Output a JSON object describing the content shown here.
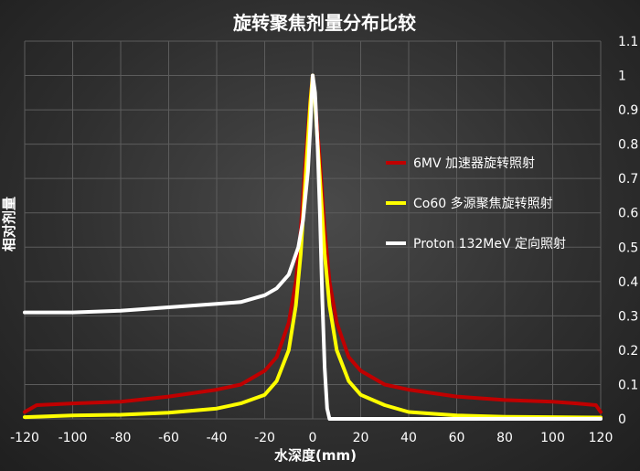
{
  "chart_data": {
    "type": "line",
    "title": "旋转聚焦剂量分布比较",
    "xlabel": "水深度(mm)",
    "ylabel": "相对剂量",
    "xlim": [
      -120,
      120
    ],
    "ylim": [
      0,
      1.1
    ],
    "xticks": [
      "-120",
      "-100",
      "-80",
      "-60",
      "-40",
      "-20",
      "0",
      "20",
      "40",
      "60",
      "80",
      "100",
      "120"
    ],
    "yticks": [
      "0",
      "0.1",
      "0.2",
      "0.3",
      "0.4",
      "0.5",
      "0.6",
      "0.7",
      "0.8",
      "0.9",
      "1",
      "1.1"
    ],
    "grid": true,
    "legend_position": "right",
    "series": [
      {
        "name": "6MV 加速器旋转照射",
        "color": "#c00000",
        "points": [
          [
            -120,
            0.02
          ],
          [
            -115,
            0.04
          ],
          [
            -100,
            0.045
          ],
          [
            -80,
            0.05
          ],
          [
            -60,
            0.065
          ],
          [
            -40,
            0.085
          ],
          [
            -30,
            0.1
          ],
          [
            -20,
            0.14
          ],
          [
            -15,
            0.18
          ],
          [
            -10,
            0.28
          ],
          [
            -7,
            0.4
          ],
          [
            -5,
            0.55
          ],
          [
            -3,
            0.75
          ],
          [
            -1,
            0.93
          ],
          [
            0,
            1.0
          ],
          [
            1,
            0.93
          ],
          [
            3,
            0.75
          ],
          [
            5,
            0.55
          ],
          [
            7,
            0.4
          ],
          [
            10,
            0.28
          ],
          [
            15,
            0.18
          ],
          [
            20,
            0.14
          ],
          [
            30,
            0.1
          ],
          [
            40,
            0.085
          ],
          [
            60,
            0.065
          ],
          [
            80,
            0.055
          ],
          [
            100,
            0.05
          ],
          [
            110,
            0.045
          ],
          [
            118,
            0.04
          ],
          [
            120,
            0.02
          ]
        ]
      },
      {
        "name": "Co60 多源聚焦旋转照射",
        "color": "#ffff00",
        "points": [
          [
            -120,
            0.005
          ],
          [
            -100,
            0.01
          ],
          [
            -80,
            0.012
          ],
          [
            -60,
            0.018
          ],
          [
            -40,
            0.03
          ],
          [
            -30,
            0.045
          ],
          [
            -20,
            0.07
          ],
          [
            -15,
            0.11
          ],
          [
            -10,
            0.2
          ],
          [
            -7,
            0.33
          ],
          [
            -5,
            0.48
          ],
          [
            -3,
            0.7
          ],
          [
            -1,
            0.92
          ],
          [
            0,
            1.0
          ],
          [
            1,
            0.92
          ],
          [
            3,
            0.7
          ],
          [
            5,
            0.48
          ],
          [
            7,
            0.33
          ],
          [
            10,
            0.2
          ],
          [
            15,
            0.11
          ],
          [
            20,
            0.07
          ],
          [
            30,
            0.04
          ],
          [
            40,
            0.02
          ],
          [
            60,
            0.01
          ],
          [
            80,
            0.006
          ],
          [
            100,
            0.005
          ],
          [
            120,
            0.004
          ]
        ]
      },
      {
        "name": "Proton 132MeV 定向照射",
        "color": "#ffffff",
        "points": [
          [
            -120,
            0.31
          ],
          [
            -100,
            0.31
          ],
          [
            -80,
            0.315
          ],
          [
            -60,
            0.325
          ],
          [
            -40,
            0.335
          ],
          [
            -30,
            0.34
          ],
          [
            -20,
            0.36
          ],
          [
            -15,
            0.38
          ],
          [
            -10,
            0.42
          ],
          [
            -6,
            0.5
          ],
          [
            -4,
            0.58
          ],
          [
            -2,
            0.72
          ],
          [
            -1,
            0.85
          ],
          [
            0,
            1.0
          ],
          [
            1,
            0.95
          ],
          [
            2,
            0.8
          ],
          [
            3,
            0.6
          ],
          [
            4,
            0.35
          ],
          [
            5,
            0.15
          ],
          [
            6,
            0.03
          ],
          [
            7,
            0.0
          ],
          [
            120,
            0.0
          ]
        ]
      }
    ]
  }
}
